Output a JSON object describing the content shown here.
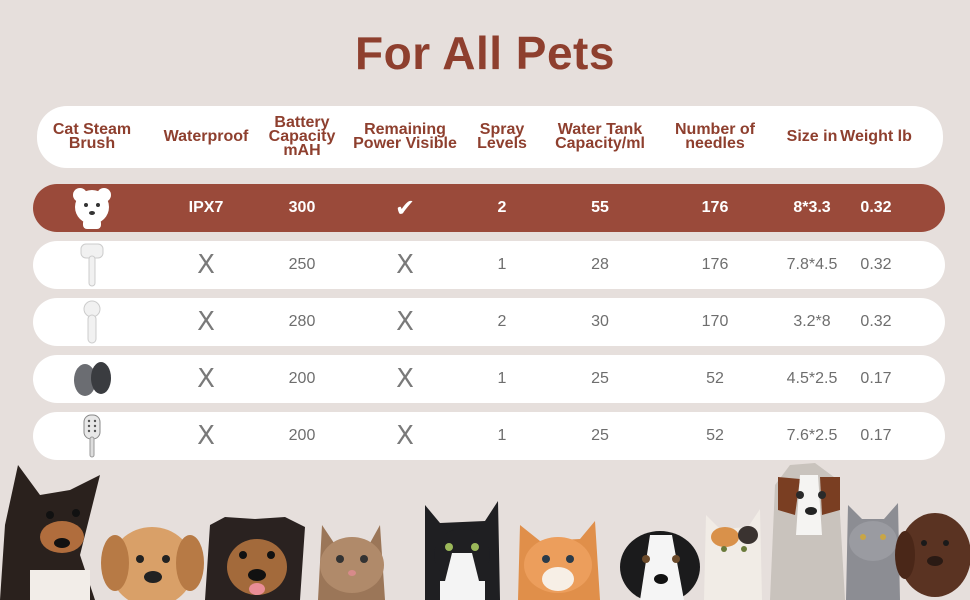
{
  "title": "For All Pets",
  "headers": [
    {
      "key": "brush",
      "label": "Cat Steam Brush"
    },
    {
      "key": "waterproof",
      "label": "Waterproof"
    },
    {
      "key": "battery",
      "label": "Battery Capacity mAH"
    },
    {
      "key": "power",
      "label": "Remaining Power Visible"
    },
    {
      "key": "spray",
      "label": "Spray Levels"
    },
    {
      "key": "tank",
      "label": "Water Tank Capacity/ml"
    },
    {
      "key": "needles",
      "label": "Number of needles"
    },
    {
      "key": "size",
      "label": "Size in"
    },
    {
      "key": "weight",
      "label": "Weight lb"
    }
  ],
  "rows": [
    {
      "highlight": true,
      "image": "bear-steam-brush-icon",
      "waterproof": "IPX7",
      "battery": "300",
      "power": "✔",
      "spray": "2",
      "tank": "55",
      "needles": "176",
      "size": "8*3.3",
      "weight": "0.32"
    },
    {
      "highlight": false,
      "image": "handle-steam-brush-icon",
      "waterproof": "X",
      "battery": "250",
      "power": "X",
      "spray": "1",
      "tank": "28",
      "needles": "176",
      "size": "7.8*4.5",
      "weight": "0.32"
    },
    {
      "highlight": false,
      "image": "round-steam-brush-icon",
      "waterproof": "X",
      "battery": "280",
      "power": "X",
      "spray": "2",
      "tank": "30",
      "needles": "170",
      "size": "3.2*8",
      "weight": "0.32"
    },
    {
      "highlight": false,
      "image": "grey-steam-brush-icon",
      "waterproof": "X",
      "battery": "200",
      "power": "X",
      "spray": "1",
      "tank": "25",
      "needles": "52",
      "size": "4.5*2.5",
      "weight": "0.17"
    },
    {
      "highlight": false,
      "image": "paddle-steam-brush-icon",
      "waterproof": "X",
      "battery": "200",
      "power": "X",
      "spray": "1",
      "tank": "25",
      "needles": "52",
      "size": "7.6*2.5",
      "weight": "0.17"
    }
  ],
  "colors": {
    "accent": "#9a4a3a",
    "title": "#8e3f2e",
    "background": "#e6dfdc"
  },
  "footer_image": "dogs-and-cats-lineup-illustration"
}
